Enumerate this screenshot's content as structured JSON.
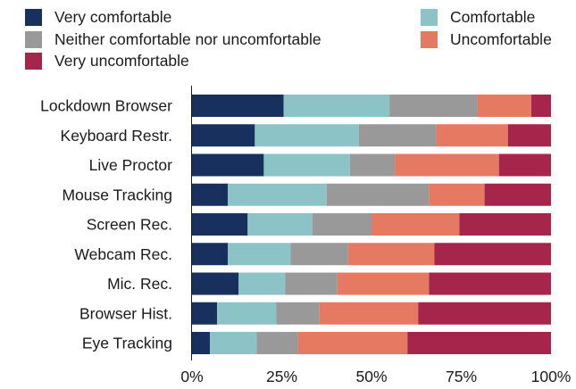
{
  "chart_data": {
    "type": "bar",
    "orientation": "horizontal",
    "stacked": "percent",
    "categories": [
      "Lockdown Browser",
      "Keyboard Restr.",
      "Live Proctor",
      "Mouse Tracking",
      "Screen Rec.",
      "Webcam Rec.",
      "Mic. Rec.",
      "Browser Hist.",
      "Eye Tracking"
    ],
    "series": [
      {
        "name": "Very comfortable",
        "color": "#18305e",
        "values": [
          25.5,
          17.5,
          20.0,
          10.0,
          15.5,
          10.0,
          13.0,
          7.0,
          5.0
        ]
      },
      {
        "name": "Comfortable",
        "color": "#8cc3c6",
        "values": [
          29.5,
          29.0,
          24.0,
          27.5,
          18.0,
          17.5,
          13.0,
          16.5,
          13.0
        ]
      },
      {
        "name": "Neither comfortable nor uncomfortable",
        "color": "#999999",
        "values": [
          24.5,
          21.5,
          12.5,
          28.5,
          16.5,
          16.0,
          14.5,
          12.0,
          11.5
        ]
      },
      {
        "name": "Uncomfortable",
        "color": "#e57962",
        "values": [
          15.0,
          20.0,
          29.0,
          15.5,
          24.5,
          24.0,
          25.5,
          27.5,
          30.5
        ]
      },
      {
        "name": "Very uncomfortable",
        "color": "#a6254a",
        "values": [
          5.5,
          12.0,
          14.5,
          18.5,
          25.5,
          32.5,
          34.0,
          37.0,
          40.0
        ]
      }
    ],
    "xlim": [
      0,
      100
    ],
    "xticks": [
      "0%",
      "25%",
      "50%",
      "75%",
      "100%"
    ],
    "title": "",
    "xlabel": "",
    "ylabel": "",
    "grid": false,
    "legend_position": "top"
  }
}
